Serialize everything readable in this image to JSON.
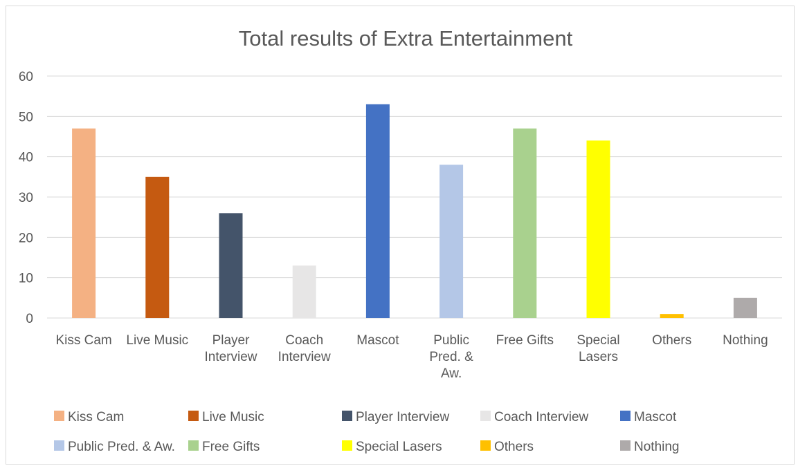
{
  "chart_data": {
    "type": "bar",
    "title": "Total results of Extra Entertainment",
    "categories": [
      "Kiss Cam",
      "Live Music",
      "Player Interview",
      "Coach Interview",
      "Mascot",
      "Public Pred. & Aw.",
      "Free Gifts",
      "Special Lasers",
      "Others",
      "Nothing"
    ],
    "category_label_lines": [
      [
        "Kiss Cam"
      ],
      [
        "Live Music"
      ],
      [
        "Player",
        "Interview"
      ],
      [
        "Coach",
        "Interview"
      ],
      [
        "Mascot"
      ],
      [
        "Public",
        "Pred. &",
        "Aw."
      ],
      [
        "Free Gifts"
      ],
      [
        "Special",
        "Lasers"
      ],
      [
        "Others"
      ],
      [
        "Nothing"
      ]
    ],
    "values": [
      47,
      35,
      26,
      13,
      53,
      38,
      47,
      44,
      1,
      5
    ],
    "colors": [
      "#F4B183",
      "#C55A11",
      "#44546A",
      "#E7E6E6",
      "#4472C4",
      "#B4C7E7",
      "#A9D18E",
      "#FFFF00",
      "#FFC000",
      "#AEAAAA"
    ],
    "ylim": [
      0,
      60
    ],
    "yticks": [
      0,
      10,
      20,
      30,
      40,
      50,
      60
    ],
    "grid": true,
    "legend_placement": "bottom",
    "legend": [
      "Kiss Cam",
      "Live Music",
      "Player Interview",
      "Coach Interview",
      "Mascot",
      "Public Pred. & Aw.",
      "Free Gifts",
      "Special Lasers",
      "Others",
      "Nothing"
    ]
  }
}
